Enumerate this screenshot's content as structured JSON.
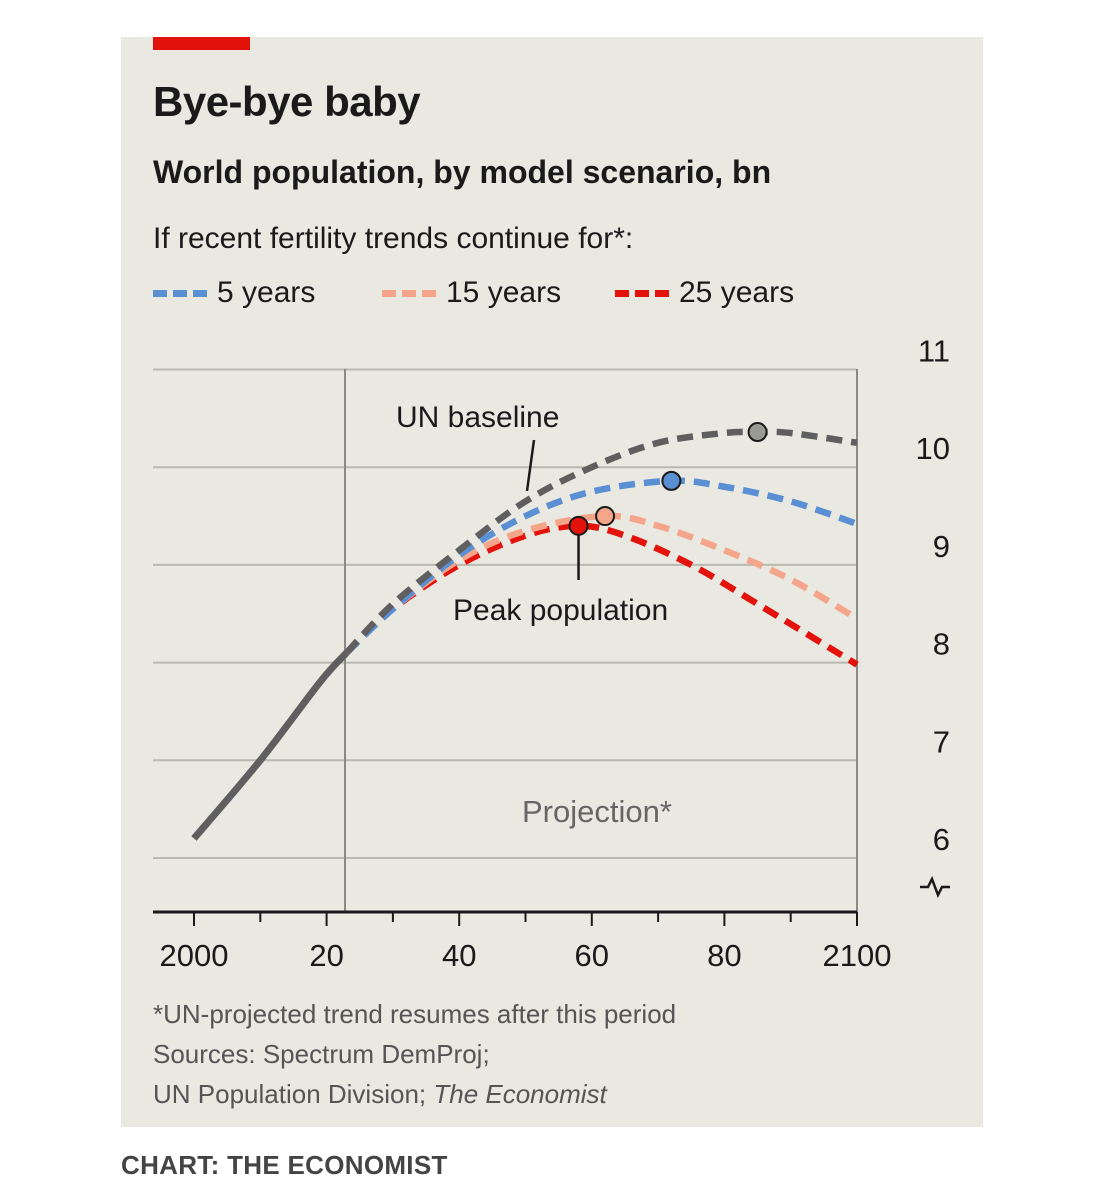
{
  "header": {
    "title": "Bye-bye baby",
    "subtitle": "World population, by model scenario, bn",
    "legend_title": "If recent fertility trends continue for*:"
  },
  "colors": {
    "background": "#e9e8e1",
    "accent": "#e3120b",
    "un_baseline": "#5f5f5f",
    "five_years": "#5b8fd4",
    "fifteen_years": "#f4a58a",
    "twentyfive_years": "#e3120b"
  },
  "annotations": {
    "un_baseline": "UN baseline",
    "peak": "Peak population",
    "projection": "Projection*",
    "axis_break_icon": "axis-break-icon"
  },
  "footnote": {
    "line1": "*UN-projected trend resumes after this period",
    "line2": "Sources: Spectrum DemProj;",
    "line3a": "UN Population Division; ",
    "line3b": "The Economist"
  },
  "credit": "CHART: THE ECONOMIST",
  "chart_data": {
    "type": "line",
    "title": "Bye-bye baby",
    "subtitle": "World population, by model scenario, bn",
    "xlim": [
      1995,
      2100
    ],
    "ylim": [
      5.45,
      11
    ],
    "x_ticks": [
      2000,
      2020,
      2040,
      2060,
      2080,
      2100
    ],
    "x_tick_labels": [
      "2000",
      "20",
      "40",
      "60",
      "80",
      "2100"
    ],
    "y_ticks": [
      6,
      7,
      8,
      9,
      10,
      11
    ],
    "y_tick_labels": [
      "6",
      "7",
      "8",
      "9",
      "10",
      "11"
    ],
    "y_axis_side": "right",
    "grid": true,
    "projection_start": 2023,
    "legend_position": "top",
    "historical": {
      "x": [
        2000,
        2010,
        2019,
        2023
      ],
      "y": [
        6.2,
        7.0,
        7.8,
        8.1
      ]
    },
    "series": [
      {
        "name": "UN baseline",
        "color": "#5f5f5f",
        "x": [
          2023,
          2030,
          2040,
          2050,
          2060,
          2070,
          2080,
          2085,
          2090,
          2100
        ],
        "y": [
          8.1,
          8.6,
          9.15,
          9.65,
          10.0,
          10.25,
          10.35,
          10.36,
          10.35,
          10.25
        ],
        "peak": {
          "x": 2085,
          "y": 10.36
        }
      },
      {
        "name": "5 years",
        "color": "#5b8fd4",
        "x": [
          2023,
          2030,
          2040,
          2050,
          2060,
          2072,
          2080,
          2090,
          2100
        ],
        "y": [
          8.1,
          8.55,
          9.1,
          9.5,
          9.75,
          9.86,
          9.8,
          9.65,
          9.42
        ],
        "peak": {
          "x": 2072,
          "y": 9.86
        }
      },
      {
        "name": "15 years",
        "color": "#f4a58a",
        "x": [
          2023,
          2030,
          2040,
          2050,
          2062,
          2070,
          2080,
          2090,
          2100
        ],
        "y": [
          8.1,
          8.55,
          9.05,
          9.35,
          9.5,
          9.4,
          9.15,
          8.85,
          8.45
        ],
        "peak": {
          "x": 2062,
          "y": 9.5
        }
      },
      {
        "name": "25 years",
        "color": "#e3120b",
        "x": [
          2023,
          2030,
          2040,
          2050,
          2058,
          2065,
          2075,
          2085,
          2100
        ],
        "y": [
          8.1,
          8.55,
          9.0,
          9.3,
          9.4,
          9.3,
          9.0,
          8.6,
          7.98
        ],
        "peak": {
          "x": 2058,
          "y": 9.4
        }
      }
    ],
    "legend": [
      {
        "label": "5 years",
        "color": "#5b8fd4"
      },
      {
        "label": "15 years",
        "color": "#f4a58a"
      },
      {
        "label": "25 years",
        "color": "#e3120b"
      }
    ]
  }
}
